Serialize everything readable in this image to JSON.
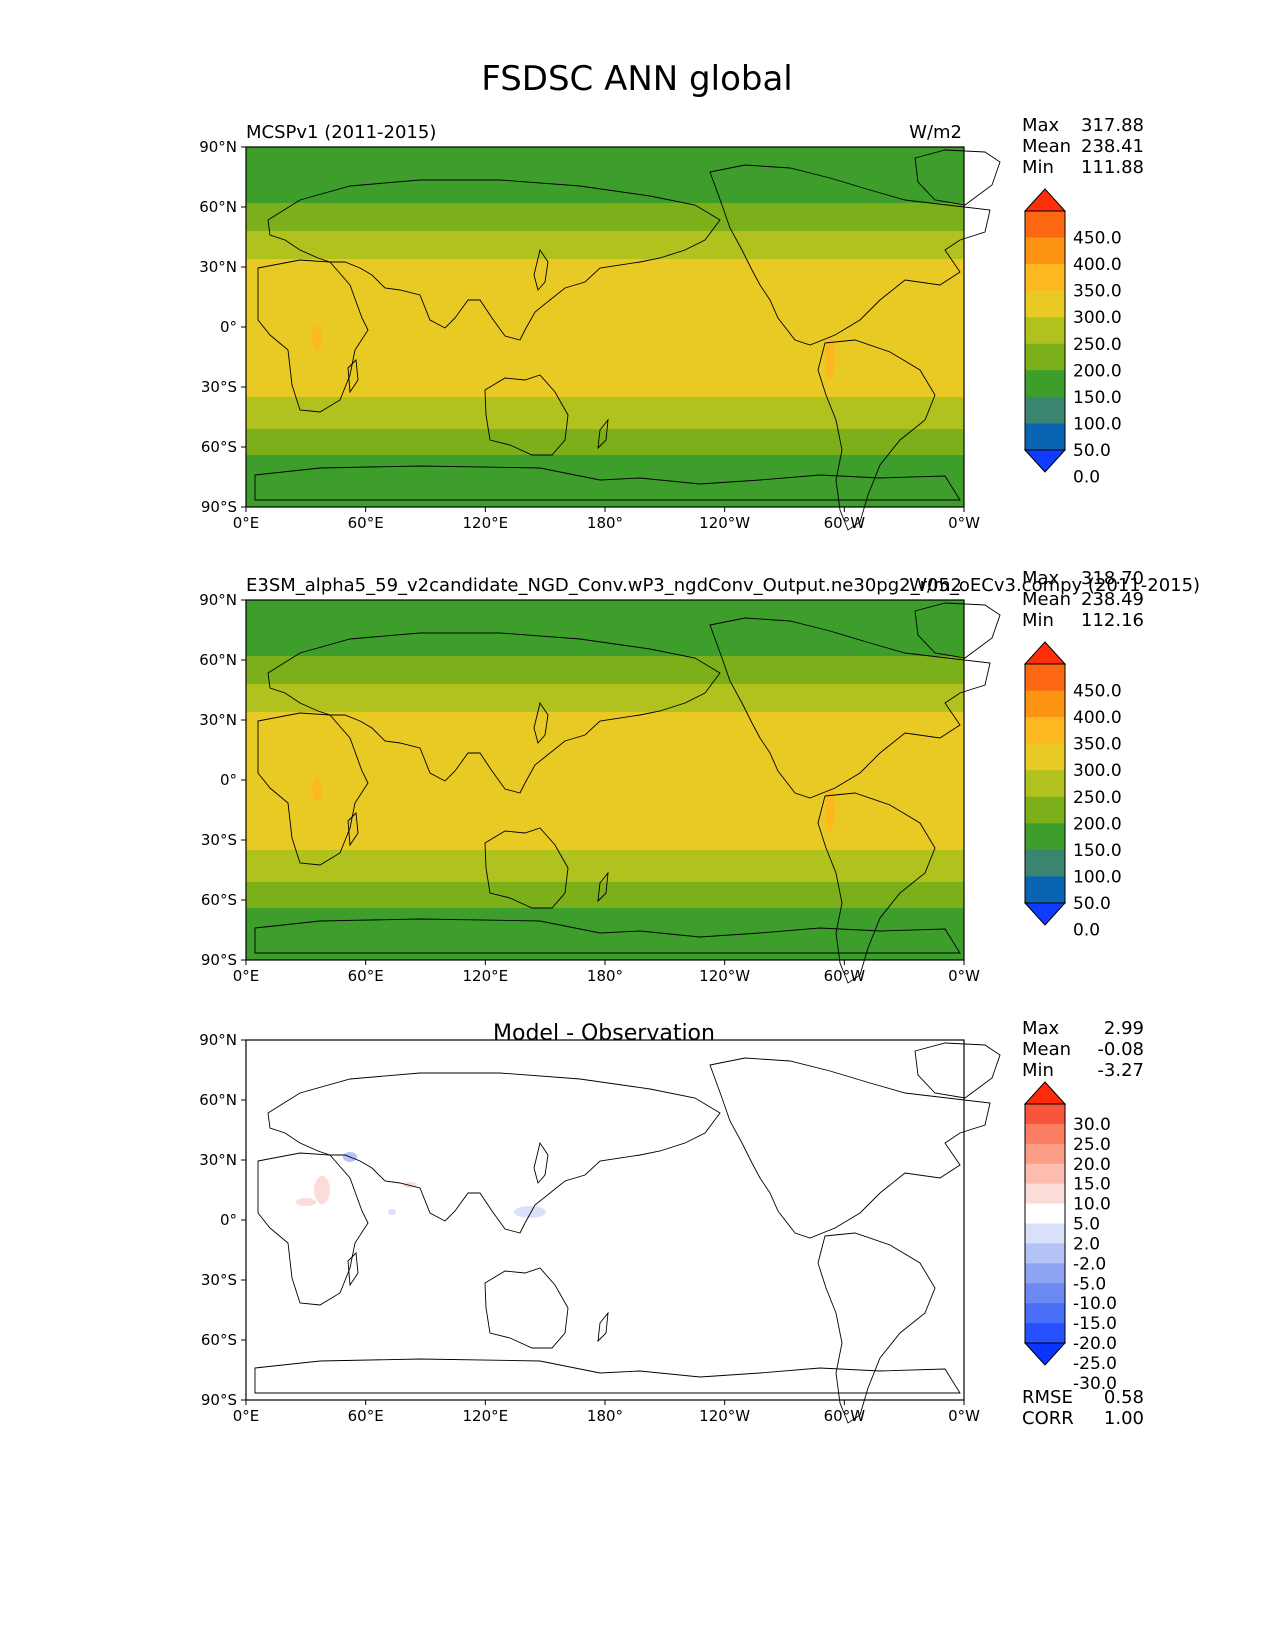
{
  "figure_title": "FSDSC ANN global",
  "colors": {
    "abs_levels": [
      "#0f3cff",
      "#0a64b4",
      "#3a8470",
      "#3d9e2c",
      "#7cb01a",
      "#b1c21e",
      "#e9ca24",
      "#fdb820",
      "#fd9414",
      "#fd6712",
      "#ff2e0a"
    ],
    "diff_levels": [
      "#0b35ff",
      "#2650ff",
      "#4a6ef8",
      "#6c89f2",
      "#8ea4f3",
      "#b3c2f7",
      "#d9e0fa",
      "#ffffff",
      "#fcdcd8",
      "#fdbcb0",
      "#fd9d88",
      "#fb7e64",
      "#f8553c",
      "#ff2a0a"
    ]
  },
  "chart_data": [
    {
      "type": "heatmap",
      "panel": "test",
      "left_title": "MCSPv1 (2011-2015)",
      "right_title": "W/m2",
      "x_ticks": [
        "0°E",
        "60°E",
        "120°E",
        "180°",
        "120°W",
        "60°W",
        "0°W"
      ],
      "y_ticks": [
        "90°N",
        "60°N",
        "30°N",
        "0°",
        "30°S",
        "60°S",
        "90°S"
      ],
      "xlim": [
        0,
        360
      ],
      "ylim": [
        -90,
        90
      ],
      "stats": {
        "max_label": "Max",
        "max": "317.88",
        "mean_label": "Mean",
        "mean": "238.41",
        "min_label": "Min",
        "min": "111.88"
      },
      "colorbar_levels": [
        "450.0",
        "400.0",
        "350.0",
        "300.0",
        "250.0",
        "200.0",
        "150.0",
        "100.0",
        "50.0",
        "0.0"
      ],
      "zonal_bands": [
        {
          "lat_min": 62,
          "lat_max": 90,
          "value": 125
        },
        {
          "lat_min": 48,
          "lat_max": 62,
          "value": 175
        },
        {
          "lat_min": 34,
          "lat_max": 48,
          "value": 225
        },
        {
          "lat_min": -35,
          "lat_max": 34,
          "value": 275
        },
        {
          "lat_min": -51,
          "lat_max": -35,
          "value": 225
        },
        {
          "lat_min": -64,
          "lat_max": -51,
          "value": 175
        },
        {
          "lat_min": -90,
          "lat_max": -64,
          "value": 125
        }
      ]
    },
    {
      "type": "heatmap",
      "panel": "reference",
      "left_title": "E3SM_alpha5_59_v2candidate_NGD_Conv.wP3_ngdConv_Output.ne30pg2_r05_oECv3.compy (2011-2015)",
      "right_title": "W/m2",
      "x_ticks": [
        "0°E",
        "60°E",
        "120°E",
        "180°",
        "120°W",
        "60°W",
        "0°W"
      ],
      "y_ticks": [
        "90°N",
        "60°N",
        "30°N",
        "0°",
        "30°S",
        "60°S",
        "90°S"
      ],
      "xlim": [
        0,
        360
      ],
      "ylim": [
        -90,
        90
      ],
      "stats": {
        "max_label": "Max",
        "max": "318.70",
        "mean_label": "Mean",
        "mean": "238.49",
        "min_label": "Min",
        "min": "112.16"
      },
      "colorbar_levels": [
        "450.0",
        "400.0",
        "350.0",
        "300.0",
        "250.0",
        "200.0",
        "150.0",
        "100.0",
        "50.0",
        "0.0"
      ],
      "zonal_bands": [
        {
          "lat_min": 62,
          "lat_max": 90,
          "value": 125
        },
        {
          "lat_min": 48,
          "lat_max": 62,
          "value": 175
        },
        {
          "lat_min": 34,
          "lat_max": 48,
          "value": 225
        },
        {
          "lat_min": -35,
          "lat_max": 34,
          "value": 275
        },
        {
          "lat_min": -51,
          "lat_max": -35,
          "value": 225
        },
        {
          "lat_min": -64,
          "lat_max": -51,
          "value": 175
        },
        {
          "lat_min": -90,
          "lat_max": -64,
          "value": 125
        }
      ]
    },
    {
      "type": "heatmap",
      "panel": "difference",
      "title": "Model - Observation",
      "x_ticks": [
        "0°E",
        "60°E",
        "120°E",
        "180°",
        "120°W",
        "60°W",
        "0°W"
      ],
      "y_ticks": [
        "90°N",
        "60°N",
        "30°N",
        "0°",
        "30°S",
        "60°S",
        "90°S"
      ],
      "xlim": [
        0,
        360
      ],
      "ylim": [
        -90,
        90
      ],
      "stats": {
        "max_label": "Max",
        "max": "2.99",
        "mean_label": "Mean",
        "mean": "-0.08",
        "min_label": "Min",
        "min": "-3.27"
      },
      "colorbar_levels": [
        "30.0",
        "25.0",
        "20.0",
        "15.0",
        "10.0",
        "5.0",
        "2.0",
        "-2.0",
        "-5.0",
        "-10.0",
        "-15.0",
        "-20.0",
        "-25.0",
        "-30.0"
      ],
      "metrics": {
        "rmse_label": "RMSE",
        "rmse": "0.58",
        "corr_label": "CORR",
        "corr": "1.00"
      }
    }
  ]
}
